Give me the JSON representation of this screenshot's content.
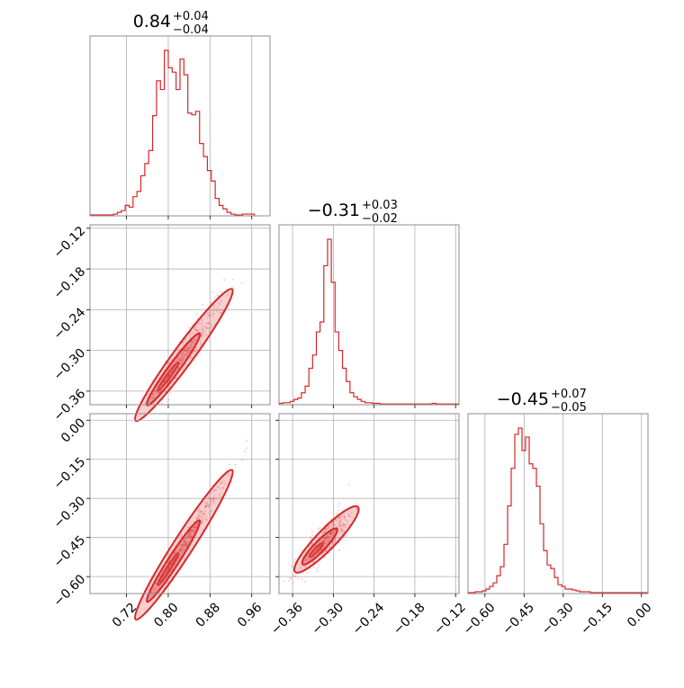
{
  "chart_data": {
    "type": "corner",
    "color": "#d62728",
    "grid": true,
    "parameters": [
      {
        "title": {
          "median": "0.84",
          "plus": "+0.04",
          "minus": "−0.04"
        },
        "ticks": [
          0.72,
          0.8,
          0.88,
          0.96
        ],
        "tick_labels": [
          "0.72",
          "0.80",
          "0.88",
          "0.96"
        ],
        "range": [
          0.65,
          0.995
        ],
        "hist": {
          "bin_start": 0.65,
          "bin_width": 0.0075,
          "counts": [
            1,
            1,
            1,
            1,
            1,
            1,
            2,
            4,
            6,
            12,
            10,
            22,
            28,
            46,
            60,
            75,
            115,
            155,
            145,
            190,
            170,
            165,
            145,
            180,
            162,
            118,
            116,
            120,
            83,
            68,
            52,
            40,
            20,
            12,
            8,
            4,
            2,
            1,
            1,
            2,
            2,
            2
          ]
        }
      },
      {
        "title": {
          "median": "−0.31",
          "plus": "+0.03",
          "minus": "−0.02"
        },
        "ticks": [
          -0.36,
          -0.3,
          -0.24,
          -0.18,
          -0.12
        ],
        "tick_labels": [
          "−0.36",
          "−0.30",
          "−0.24",
          "−0.18",
          "−0.12"
        ],
        "range": [
          -0.38,
          -0.115
        ],
        "hist": {
          "bin_start": -0.38,
          "bin_width": 0.0055,
          "counts": [
            2,
            3,
            3,
            5,
            8,
            10,
            18,
            28,
            55,
            75,
            110,
            125,
            210,
            250,
            185,
            110,
            82,
            55,
            35,
            18,
            12,
            8,
            5,
            3,
            3,
            2,
            2,
            1,
            1,
            1,
            1,
            1,
            1,
            1,
            1,
            1,
            1,
            1,
            1,
            1,
            1,
            2,
            1,
            1,
            1,
            1,
            1,
            1
          ]
        }
      },
      {
        "title": {
          "median": "−0.45",
          "plus": "+0.07",
          "minus": "−0.05"
        },
        "ticks": [
          -0.6,
          -0.45,
          -0.3,
          -0.15,
          0.0
        ],
        "tick_labels": [
          "−0.60",
          "−0.45",
          "−0.30",
          "−0.15",
          "0.00"
        ],
        "range": [
          -0.665,
          0.025
        ],
        "hist": {
          "bin_start": -0.665,
          "bin_width": 0.0138,
          "counts": [
            1,
            1,
            2,
            2,
            3,
            5,
            8,
            12,
            20,
            30,
            55,
            98,
            140,
            178,
            185,
            160,
            175,
            145,
            140,
            120,
            78,
            48,
            32,
            28,
            18,
            10,
            8,
            5,
            5,
            4,
            3,
            2,
            2,
            2,
            1,
            1,
            1,
            1,
            1,
            1,
            1,
            1,
            1,
            1,
            1,
            1,
            1,
            1,
            1,
            1
          ]
        }
      }
    ],
    "scatter_panels": [
      {
        "x_param": 0,
        "y_param": 1,
        "slope": 1.05,
        "intercept": -1.178,
        "x_mean": 0.83,
        "x_sd": 0.04,
        "y_sd": 0.015
      },
      {
        "x_param": 0,
        "y_param": 2,
        "slope": 3.1,
        "intercept": -3.05,
        "x_mean": 0.83,
        "x_sd": 0.04,
        "y_sd": 0.02
      },
      {
        "x_param": 1,
        "y_param": 2,
        "slope": 2.7,
        "intercept": 0.38,
        "x_mean": -0.31,
        "x_sd": 0.02,
        "y_sd": 0.035
      }
    ]
  }
}
